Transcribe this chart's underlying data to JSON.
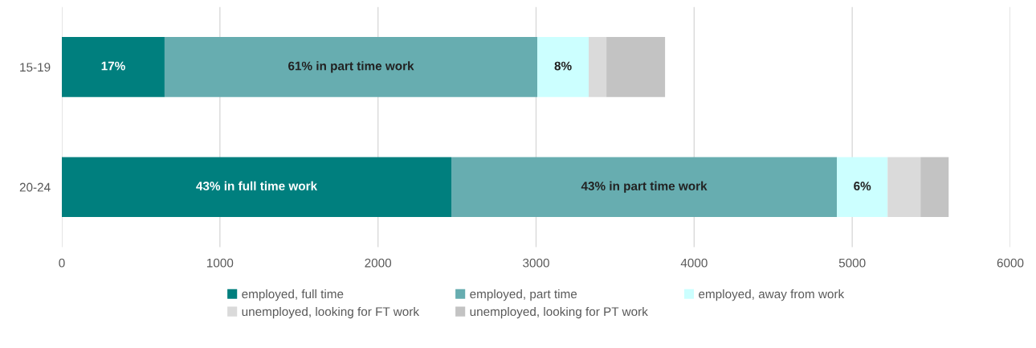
{
  "chart_data": {
    "type": "bar",
    "orientation": "horizontal",
    "stacked": true,
    "categories": [
      "15-19",
      "20-24"
    ],
    "series": [
      {
        "name": "employed, full time",
        "color": "#007f7e",
        "values": [
          650,
          2464
        ]
      },
      {
        "name": "employed, part time",
        "color": "#67adb0",
        "values": [
          2358,
          2439
        ]
      },
      {
        "name": "employed, away from work",
        "color": "#ccffff",
        "values": [
          325,
          321
        ]
      },
      {
        "name": "unemployed, looking for FT work",
        "color": "#dadada",
        "values": [
          112,
          208
        ]
      },
      {
        "name": "unemployed, looking for PT work",
        "color": "#c3c3c3",
        "values": [
          371,
          178
        ]
      }
    ],
    "annotations": [
      "17%",
      "61% in part time work",
      "8%",
      "43% in full time work",
      "43% in part time work",
      "6%"
    ],
    "xlim": [
      0,
      6000
    ],
    "xticks": [
      0,
      1000,
      2000,
      3000,
      4000,
      5000,
      6000
    ],
    "grid": "x",
    "legend": "bottom"
  }
}
